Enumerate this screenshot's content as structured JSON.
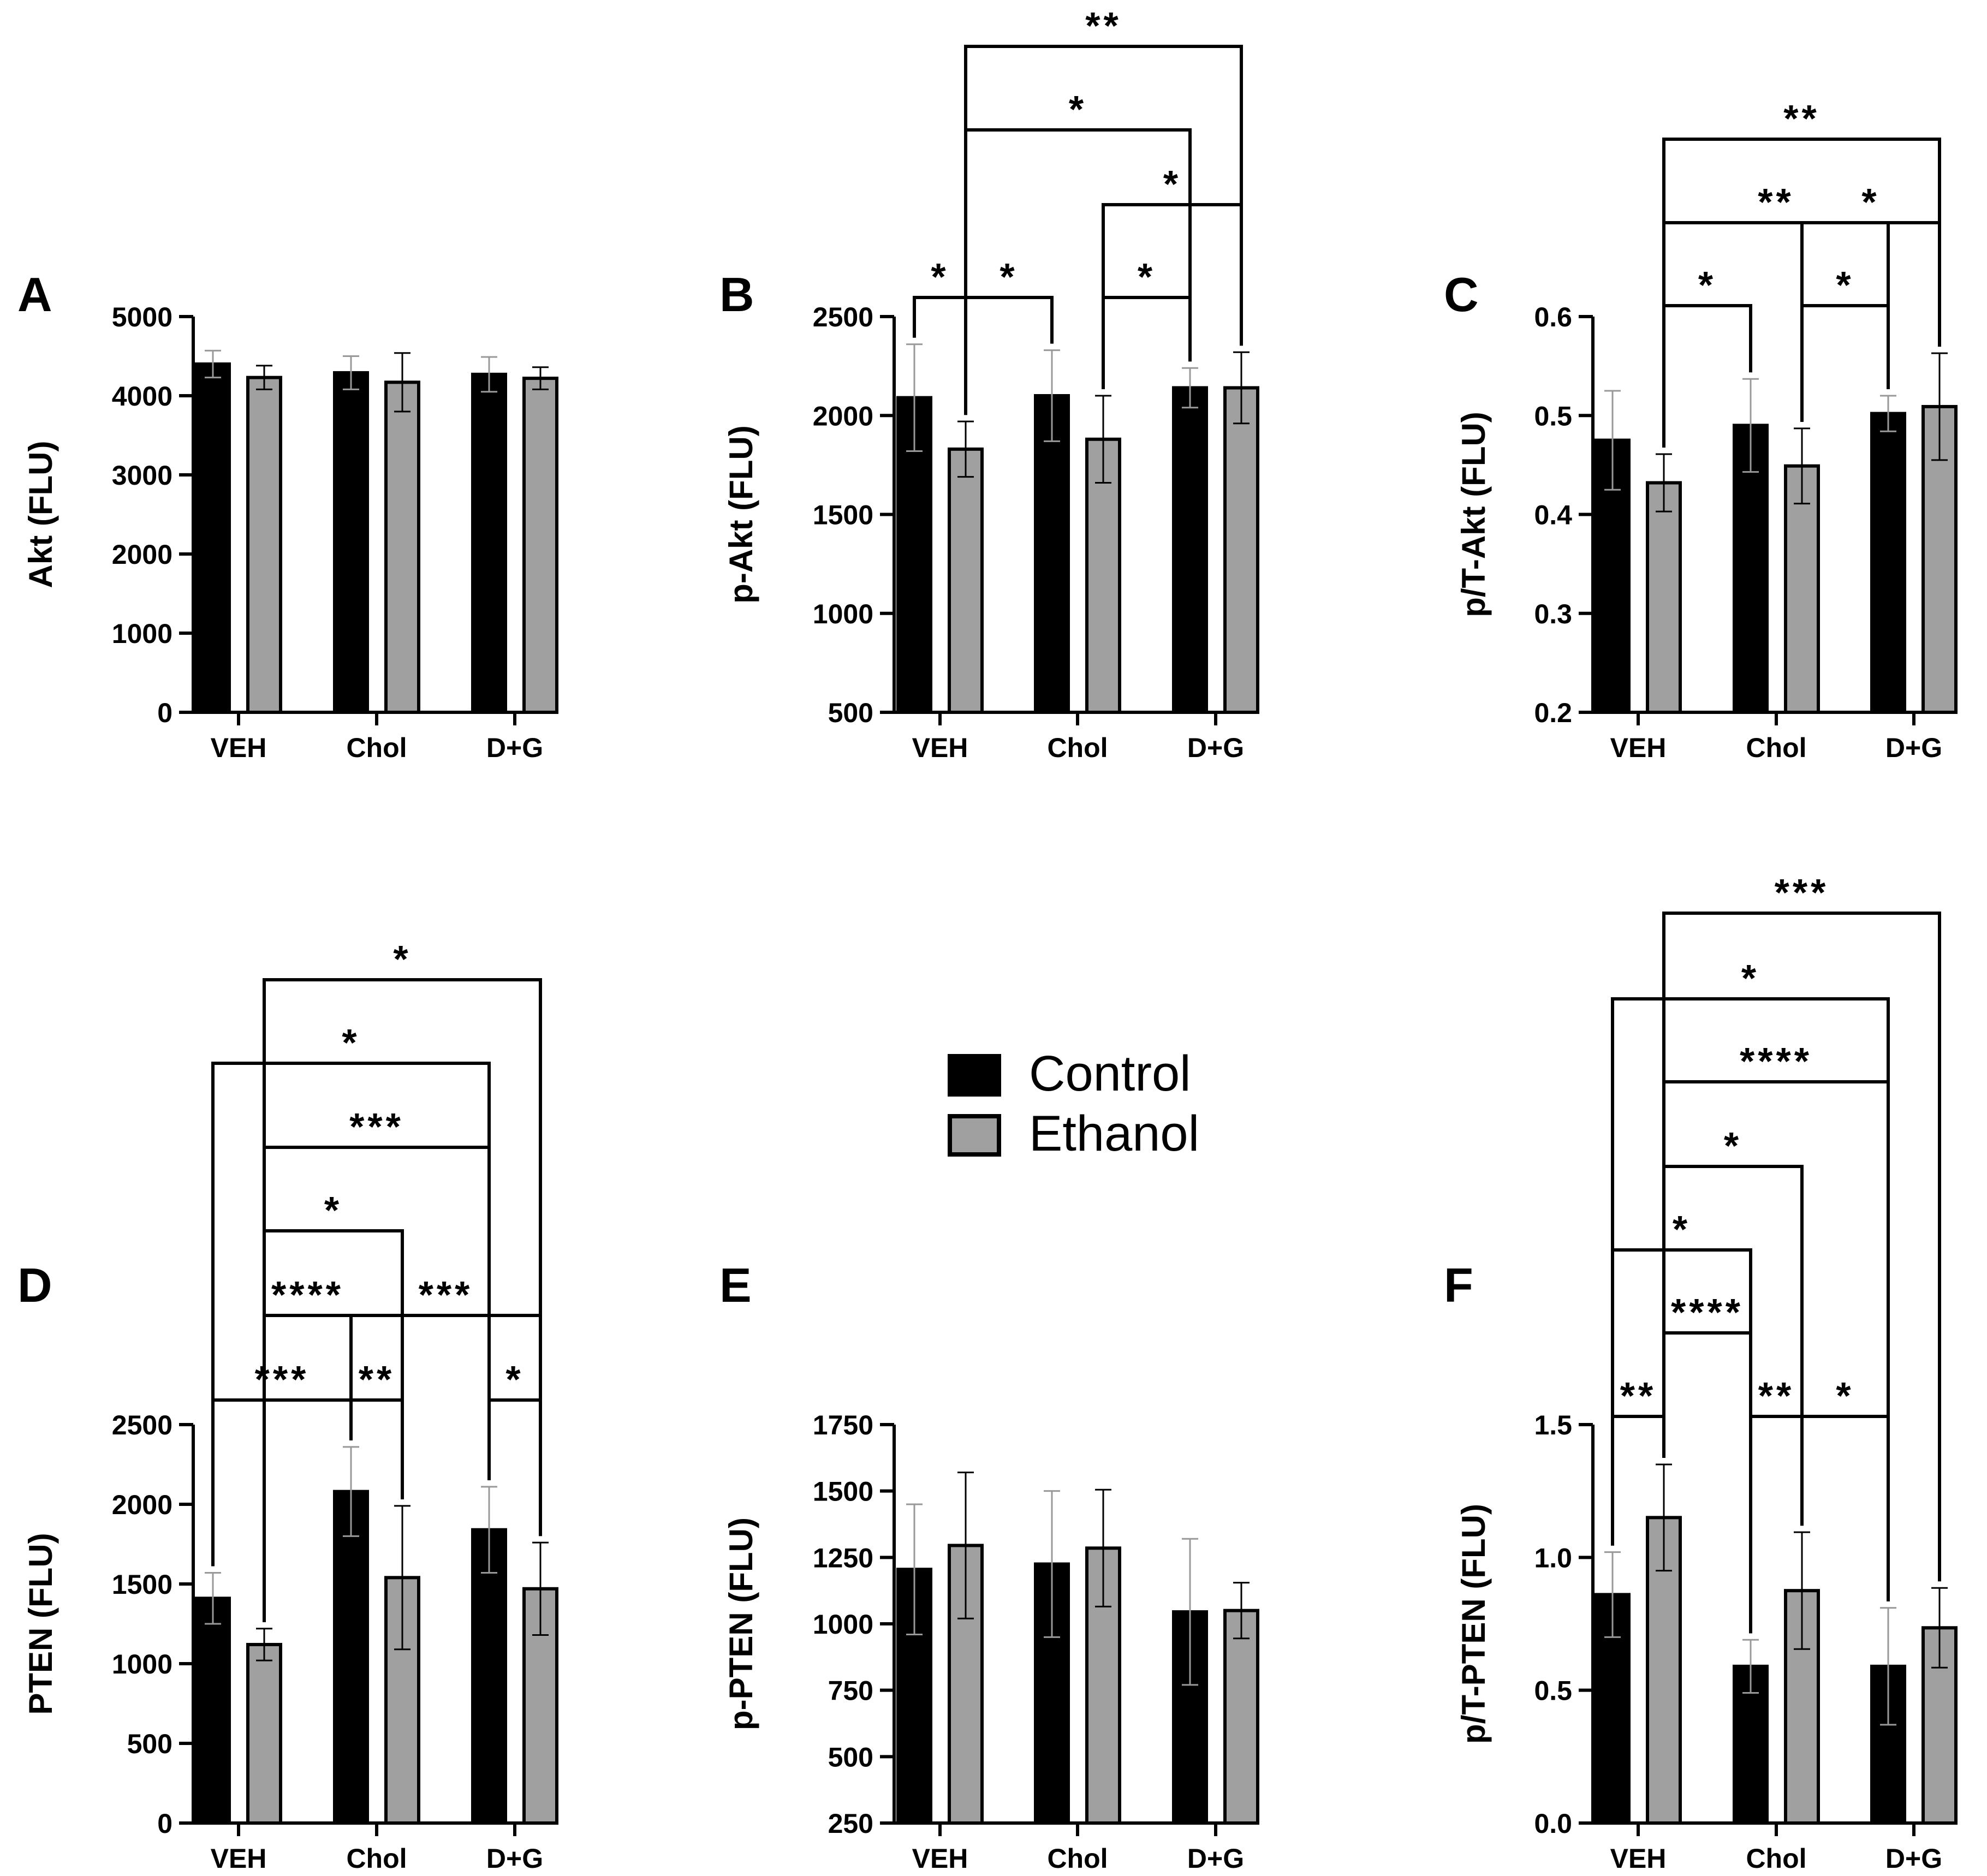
{
  "legend": {
    "items": [
      {
        "label": "Control",
        "color": "#000000"
      },
      {
        "label": "Ethanol",
        "color": "#a0a0a0"
      }
    ]
  },
  "colors": {
    "control": "#000000",
    "ethanol": "#a0a0a0",
    "axis": "#000000",
    "err_control": "#999999"
  },
  "chart_data": [
    {
      "panel": "A",
      "type": "bar",
      "ylabel": "Akt (FLU)",
      "categories": [
        "VEH",
        "Chol",
        "D+G"
      ],
      "ylim": [
        0,
        5000
      ],
      "yticks": [
        "0",
        "1000",
        "2000",
        "3000",
        "4000",
        "5000"
      ],
      "ytick_values": [
        0,
        1000,
        2000,
        3000,
        4000,
        5000
      ],
      "series": [
        {
          "name": "Control",
          "values": [
            4400,
            4290,
            4270
          ],
          "errors": [
            170,
            210,
            220
          ]
        },
        {
          "name": "Ethanol",
          "values": [
            4230,
            4170,
            4220
          ],
          "errors": [
            150,
            370,
            140
          ]
        }
      ],
      "significance": []
    },
    {
      "panel": "B",
      "type": "bar",
      "ylabel": "p-Akt (FLU)",
      "categories": [
        "VEH",
        "Chol",
        "D+G"
      ],
      "ylim": [
        500,
        2500
      ],
      "yticks": [
        "500",
        "1000",
        "1500",
        "2000",
        "2500"
      ],
      "ytick_values": [
        500,
        1000,
        1500,
        2000,
        2500
      ],
      "series": [
        {
          "name": "Control",
          "values": [
            2090,
            2100,
            2140
          ],
          "errors": [
            270,
            230,
            100
          ]
        },
        {
          "name": "Ethanol",
          "values": [
            1830,
            1880,
            2140
          ],
          "errors": [
            140,
            220,
            180
          ]
        }
      ],
      "significance": [
        {
          "from": [
            0,
            0
          ],
          "to": [
            0,
            1
          ],
          "label": "*"
        },
        {
          "from": [
            0,
            1
          ],
          "to": [
            1,
            0
          ],
          "label": "*"
        },
        {
          "from": [
            1,
            1
          ],
          "to": [
            2,
            0
          ],
          "label": "*"
        },
        {
          "from": [
            1,
            1
          ],
          "to": [
            2,
            1
          ],
          "label": "*"
        },
        {
          "from": [
            0,
            1
          ],
          "to": [
            2,
            0
          ],
          "label": "*"
        },
        {
          "from": [
            0,
            1
          ],
          "to": [
            2,
            1
          ],
          "label": "**"
        }
      ]
    },
    {
      "panel": "C",
      "type": "bar",
      "ylabel": "p/T-Akt (FLU)",
      "categories": [
        "VEH",
        "Chol",
        "D+G"
      ],
      "ylim": [
        0.2,
        0.6
      ],
      "yticks": [
        "0.2",
        "0.3",
        "0.4",
        "0.5",
        "0.6"
      ],
      "ytick_values": [
        0.2,
        0.3,
        0.4,
        0.5,
        0.6
      ],
      "series": [
        {
          "name": "Control",
          "values": [
            0.475,
            0.49,
            0.502
          ],
          "errors": [
            0.05,
            0.047,
            0.018
          ]
        },
        {
          "name": "Ethanol",
          "values": [
            0.432,
            0.449,
            0.509
          ],
          "errors": [
            0.029,
            0.038,
            0.054
          ]
        }
      ],
      "significance": [
        {
          "from": [
            0,
            1
          ],
          "to": [
            1,
            0
          ],
          "label": "*"
        },
        {
          "from": [
            1,
            1
          ],
          "to": [
            2,
            0
          ],
          "label": "*"
        },
        {
          "from": [
            1,
            1
          ],
          "to": [
            2,
            1
          ],
          "label": "*"
        },
        {
          "from": [
            0,
            1
          ],
          "to": [
            2,
            0
          ],
          "label": "**"
        },
        {
          "from": [
            0,
            1
          ],
          "to": [
            2,
            1
          ],
          "label": "**"
        }
      ]
    },
    {
      "panel": "D",
      "type": "bar",
      "ylabel": "PTEN (FLU)",
      "categories": [
        "VEH",
        "Chol",
        "D+G"
      ],
      "ylim": [
        0,
        2500
      ],
      "yticks": [
        "0",
        "500",
        "1000",
        "1500",
        "2000",
        "2500"
      ],
      "ytick_values": [
        0,
        500,
        1000,
        1500,
        2000,
        2500
      ],
      "series": [
        {
          "name": "Control",
          "values": [
            1410,
            2080,
            1840
          ],
          "errors": [
            160,
            280,
            270
          ]
        },
        {
          "name": "Ethanol",
          "values": [
            1120,
            1540,
            1470
          ],
          "errors": [
            100,
            450,
            290
          ]
        }
      ],
      "significance": [
        {
          "from": [
            0,
            0
          ],
          "to": [
            1,
            0
          ],
          "label": "***"
        },
        {
          "from": [
            1,
            0
          ],
          "to": [
            1,
            1
          ],
          "label": "**"
        },
        {
          "from": [
            2,
            0
          ],
          "to": [
            2,
            1
          ],
          "label": "*"
        },
        {
          "from": [
            0,
            1
          ],
          "to": [
            1,
            0
          ],
          "label": "****"
        },
        {
          "from": [
            1,
            0
          ],
          "to": [
            2,
            1
          ],
          "label": "***"
        },
        {
          "from": [
            0,
            1
          ],
          "to": [
            1,
            1
          ],
          "label": "*"
        },
        {
          "from": [
            0,
            1
          ],
          "to": [
            2,
            0
          ],
          "label": "***"
        },
        {
          "from": [
            0,
            0
          ],
          "to": [
            2,
            0
          ],
          "label": "*"
        },
        {
          "from": [
            0,
            1
          ],
          "to": [
            2,
            1
          ],
          "label": "*"
        }
      ]
    },
    {
      "panel": "E",
      "type": "bar",
      "ylabel": "p-PTEN (FLU)",
      "categories": [
        "VEH",
        "Chol",
        "D+G"
      ],
      "ylim": [
        250,
        1750
      ],
      "yticks": [
        "250",
        "500",
        "750",
        "1000",
        "1250",
        "1500",
        "1750"
      ],
      "ytick_values": [
        250,
        500,
        750,
        1000,
        1250,
        1500,
        1750
      ],
      "series": [
        {
          "name": "Control",
          "values": [
            1205,
            1225,
            1045
          ],
          "errors": [
            245,
            275,
            275
          ]
        },
        {
          "name": "Ethanol",
          "values": [
            1295,
            1285,
            1050
          ],
          "errors": [
            275,
            220,
            105
          ]
        }
      ],
      "significance": []
    },
    {
      "panel": "F",
      "type": "bar",
      "ylabel": "p/T-PTEN (FLU)",
      "categories": [
        "VEH",
        "Chol",
        "D+G"
      ],
      "ylim": [
        0,
        1.5
      ],
      "yticks": [
        "0.0",
        "0.5",
        "1.0",
        "1.5"
      ],
      "ytick_values": [
        0,
        0.5,
        1.0,
        1.5
      ],
      "series": [
        {
          "name": "Control",
          "values": [
            0.86,
            0.59,
            0.59
          ],
          "errors": [
            0.16,
            0.1,
            0.22
          ]
        },
        {
          "name": "Ethanol",
          "values": [
            1.15,
            0.875,
            0.735
          ],
          "errors": [
            0.2,
            0.22,
            0.15
          ]
        }
      ],
      "significance": [
        {
          "from": [
            0,
            0
          ],
          "to": [
            0,
            1
          ],
          "label": "**"
        },
        {
          "from": [
            1,
            0
          ],
          "to": [
            1,
            1
          ],
          "label": "**"
        },
        {
          "from": [
            1,
            1
          ],
          "to": [
            2,
            0
          ],
          "label": "*"
        },
        {
          "from": [
            0,
            1
          ],
          "to": [
            1,
            0
          ],
          "label": "****"
        },
        {
          "from": [
            0,
            0
          ],
          "to": [
            1,
            0
          ],
          "label": "*"
        },
        {
          "from": [
            0,
            1
          ],
          "to": [
            1,
            1
          ],
          "label": "*"
        },
        {
          "from": [
            0,
            1
          ],
          "to": [
            2,
            0
          ],
          "label": "****"
        },
        {
          "from": [
            0,
            0
          ],
          "to": [
            2,
            0
          ],
          "label": "*"
        },
        {
          "from": [
            0,
            1
          ],
          "to": [
            2,
            1
          ],
          "label": "***"
        }
      ]
    }
  ]
}
